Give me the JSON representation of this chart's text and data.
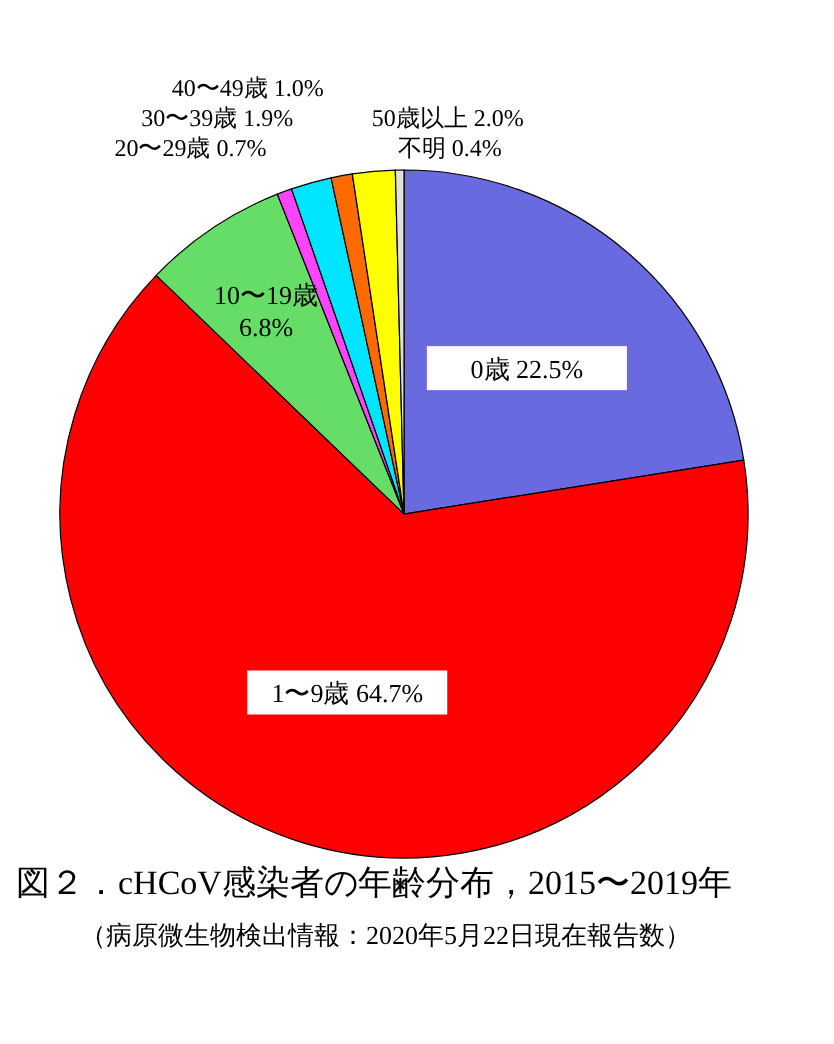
{
  "chart_data": {
    "type": "pie",
    "title": "図２．cHCoV感染者の年齢分布，2015〜2019年",
    "subtitle": "（病原微生物検出情報：2020年5月22日現在報告数）",
    "categories": [
      "0歳",
      "1〜9歳",
      "10〜19歳",
      "20〜29歳",
      "30〜39歳",
      "40〜49歳",
      "50歳以上",
      "不明"
    ],
    "values": [
      22.5,
      64.7,
      6.8,
      0.7,
      1.9,
      1.0,
      2.0,
      0.4
    ],
    "value_labels": [
      "22.5%",
      "64.7%",
      "6.8%",
      "0.7%",
      "1.9%",
      "1.0%",
      "2.0%",
      "0.4%"
    ],
    "colors": [
      "#6a6ae0",
      "#ff0000",
      "#66dd66",
      "#ff44ff",
      "#00e5ff",
      "#ff6a00",
      "#ffff00",
      "#e0e0e0"
    ]
  }
}
